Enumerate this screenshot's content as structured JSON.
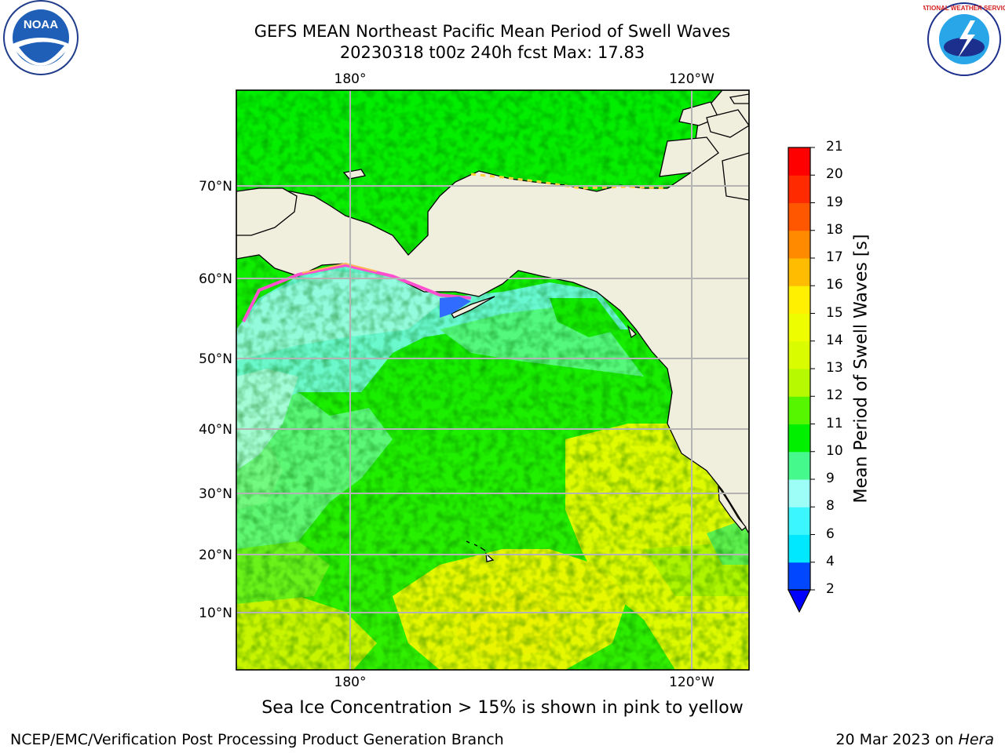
{
  "title_line1": "GEFS MEAN Northeast Pacific Mean Period of Swell Waves",
  "title_line2": "20230318 t00z 240h fcst   Max: 17.83",
  "logos": {
    "left": "NOAA",
    "right": "NATIONAL WEATHER SERVICE"
  },
  "map": {
    "lon_labels_top": [
      "180°",
      "120°W"
    ],
    "lon_labels_bottom": [
      "180°",
      "120°W"
    ],
    "lat_labels": [
      "70°N",
      "60°N",
      "50°N",
      "40°N",
      "30°N",
      "20°N",
      "10°N"
    ]
  },
  "colorbar": {
    "title": "Mean Period of Swell Waves [s]",
    "tick_labels": [
      "2",
      "4",
      "6",
      "8",
      "9",
      "10",
      "11",
      "12",
      "13",
      "14",
      "15",
      "16",
      "17",
      "18",
      "19",
      "20",
      "21"
    ],
    "colors": [
      "#0047ff",
      "#00e8ff",
      "#3cf6ff",
      "#9dfdf7",
      "#46f98c",
      "#00f000",
      "#56f500",
      "#b6f900",
      "#dafc00",
      "#eefe00",
      "#ffef00",
      "#ffbc00",
      "#ff8a00",
      "#ff5600",
      "#ff2a00",
      "#ff0000"
    ],
    "under_color": "#0000ff"
  },
  "footer": {
    "note": "Sea Ice Concentration > 15% is shown in pink to yellow",
    "left": "NCEP/EMC/Verification Post Processing Product Generation Branch",
    "right_date": "20 Mar 2023 on ",
    "right_machine": "Hera"
  }
}
